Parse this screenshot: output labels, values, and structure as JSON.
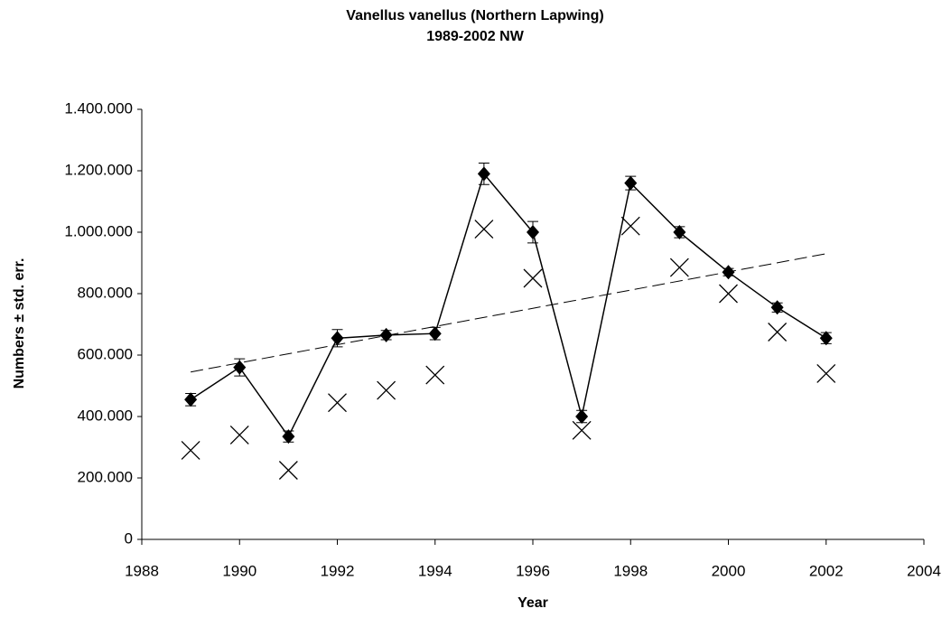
{
  "chart_data": {
    "type": "scatter",
    "title": "Vanellus vanellus (Northern Lapwing)",
    "subtitle": "1989-2002 NW",
    "x_label": "Year",
    "y_label": "Numbers ± std. err.",
    "xlim": [
      1988,
      2004
    ],
    "xticks": [
      1988,
      1990,
      1992,
      1994,
      1996,
      1998,
      2000,
      2002,
      2004
    ],
    "ylim": [
      0,
      1400000
    ],
    "yticks": [
      0,
      {
        "value": 200000,
        "label": "200.000"
      },
      {
        "value": 400000,
        "label": "400.000"
      },
      {
        "value": 600000,
        "label": "600.000"
      },
      {
        "value": 800000,
        "label": "800.000"
      },
      {
        "value": 1000000,
        "label": "1.000.000"
      },
      {
        "value": 1200000,
        "label": "1.200.000"
      },
      {
        "value": 1400000,
        "label": "1.400.000"
      }
    ],
    "grid": false,
    "series": [
      {
        "color": "#000000",
        "marker": "diamond",
        "line": "solid",
        "x": [
          1989,
          1990,
          1991,
          1992,
          1993,
          1994,
          1995,
          1996,
          1997,
          1998,
          1999,
          2000,
          2001,
          2002
        ],
        "values": [
          455000,
          560000,
          335000,
          655000,
          665000,
          670000,
          1190000,
          1000000,
          400000,
          1160000,
          1000000,
          870000,
          755000,
          655000
        ],
        "errors": [
          20000,
          28000,
          18000,
          28000,
          15000,
          20000,
          35000,
          35000,
          20000,
          22000,
          18000,
          12000,
          15000,
          18000
        ]
      },
      {
        "color": "#000000",
        "marker": "x",
        "line": "none",
        "x": [
          1989,
          1990,
          1991,
          1992,
          1993,
          1994,
          1995,
          1996,
          1997,
          1998,
          1999,
          2000,
          2001,
          2002
        ],
        "values": [
          290000,
          340000,
          225000,
          445000,
          485000,
          535000,
          1010000,
          850000,
          355000,
          1020000,
          885000,
          800000,
          675000,
          540000
        ]
      },
      {
        "color": "#000000",
        "marker": "none",
        "line": "dashed",
        "x": [
          1989,
          2002
        ],
        "values": [
          545000,
          930000
        ]
      }
    ]
  }
}
